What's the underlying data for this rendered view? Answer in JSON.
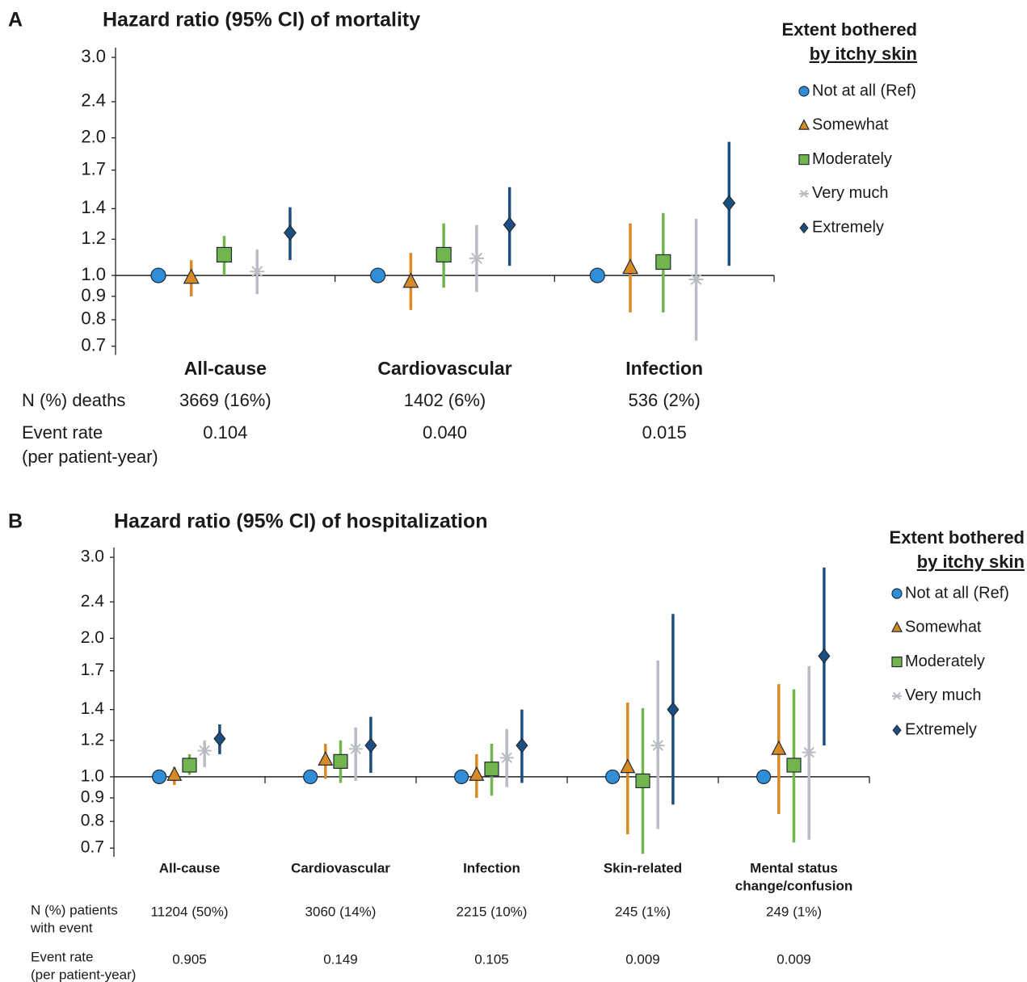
{
  "chart_data": [
    {
      "type": "forest",
      "panel": "A",
      "title": "Hazard ratio (95% CI) of mortality",
      "legend_title": [
        "Extent bothered",
        "by itchy skin"
      ],
      "categories": [
        "All-cause",
        "Cardiovascular",
        "Infection"
      ],
      "log_scale": true,
      "ylim": [
        0.67,
        3.1
      ],
      "yticks": [
        0.7,
        0.8,
        0.9,
        {
          "value": 1,
          "label": "1.0"
        },
        1.2,
        1.4,
        1.7,
        {
          "value": 2,
          "label": "2.0"
        },
        2.4,
        {
          "value": 3,
          "label": "3.0"
        }
      ],
      "series": [
        {
          "name": "Not at all (Ref)",
          "color": "#2e8fd8",
          "marker": "circle",
          "values": [
            1,
            1,
            1
          ],
          "lower": [
            null,
            null,
            null
          ],
          "upper": [
            null,
            null,
            null
          ]
        },
        {
          "name": "Somewhat",
          "color": "#d98a25",
          "marker": "triangle",
          "values": [
            0.99,
            0.97,
            1.04
          ],
          "lower": [
            0.9,
            0.84,
            0.83
          ],
          "upper": [
            1.08,
            1.12,
            1.3
          ]
        },
        {
          "name": "Moderately",
          "color": "#72b54c",
          "marker": "square",
          "values": [
            1.11,
            1.11,
            1.07
          ],
          "lower": [
            1.0,
            0.94,
            0.83
          ],
          "upper": [
            1.22,
            1.3,
            1.37
          ]
        },
        {
          "name": "Very much",
          "color": "#b9bcc4",
          "marker": "asterisk",
          "values": [
            1.02,
            1.09,
            0.98
          ],
          "lower": [
            0.91,
            0.92,
            0.72
          ],
          "upper": [
            1.14,
            1.29,
            1.33
          ]
        },
        {
          "name": "Extremely",
          "color": "#1c4f80",
          "marker": "diamond",
          "values": [
            1.24,
            1.29,
            1.44
          ],
          "lower": [
            1.08,
            1.05,
            1.05
          ],
          "upper": [
            1.41,
            1.56,
            1.96
          ]
        }
      ],
      "rows": [
        {
          "label": [
            "N (%) deaths"
          ],
          "cells": [
            "3669 (16%)",
            "1402 (6%)",
            "536 (2%)"
          ]
        },
        {
          "label": [
            "Event rate",
            "(per patient-year)"
          ],
          "cells": [
            "0.104",
            "0.040",
            "0.015"
          ]
        }
      ]
    },
    {
      "type": "forest",
      "panel": "B",
      "title": "Hazard ratio (95% CI) of hospitalization",
      "legend_title": [
        "Extent bothered",
        "by itchy skin"
      ],
      "categories": [
        [
          "All-cause"
        ],
        [
          "Cardiovascular"
        ],
        [
          "Infection"
        ],
        [
          "Skin-related"
        ],
        [
          "Mental status",
          "change/confusion"
        ]
      ],
      "log_scale": true,
      "ylim": [
        0.67,
        3.1
      ],
      "yticks": [
        0.7,
        0.8,
        0.9,
        {
          "value": 1,
          "label": "1.0"
        },
        1.2,
        1.4,
        1.7,
        {
          "value": 2,
          "label": "2.0"
        },
        2.4,
        {
          "value": 3,
          "label": "3.0"
        }
      ],
      "series": [
        {
          "name": "Not at all (Ref)",
          "color": "#2e8fd8",
          "marker": "circle",
          "values": [
            1,
            1,
            1,
            1,
            1
          ],
          "lower": [
            null,
            null,
            null,
            null,
            null
          ],
          "upper": [
            null,
            null,
            null,
            null,
            null
          ]
        },
        {
          "name": "Somewhat",
          "color": "#d98a25",
          "marker": "triangle",
          "values": [
            1.01,
            1.09,
            1.01,
            1.05,
            1.15
          ],
          "lower": [
            0.96,
            0.99,
            0.9,
            0.75,
            0.83
          ],
          "upper": [
            1.05,
            1.18,
            1.12,
            1.45,
            1.59
          ]
        },
        {
          "name": "Moderately",
          "color": "#72b54c",
          "marker": "square",
          "values": [
            1.06,
            1.08,
            1.04,
            0.98,
            1.06
          ],
          "lower": [
            1.01,
            0.97,
            0.91,
            0.68,
            0.72
          ],
          "upper": [
            1.12,
            1.2,
            1.18,
            1.41,
            1.55
          ]
        },
        {
          "name": "Very much",
          "color": "#b9bcc4",
          "marker": "asterisk",
          "values": [
            1.14,
            1.15,
            1.1,
            1.17,
            1.13
          ],
          "lower": [
            1.05,
            0.98,
            0.95,
            0.77,
            0.73
          ],
          "upper": [
            1.2,
            1.28,
            1.27,
            1.79,
            1.74
          ]
        },
        {
          "name": "Extremely",
          "color": "#1c4f80",
          "marker": "diamond",
          "values": [
            1.21,
            1.17,
            1.17,
            1.4,
            1.83
          ],
          "lower": [
            1.12,
            1.02,
            0.97,
            0.87,
            1.17
          ],
          "upper": [
            1.3,
            1.35,
            1.4,
            2.26,
            2.85
          ]
        }
      ],
      "rows": [
        {
          "label": [
            "N (%) patients",
            "with event"
          ],
          "cells": [
            "11204 (50%)",
            "3060 (14%)",
            "2215 (10%)",
            "245 (1%)",
            "249 (1%)"
          ]
        },
        {
          "label": [
            "Event rate",
            "(per patient-year)"
          ],
          "cells": [
            "0.905",
            "0.149",
            "0.105",
            "0.009",
            "0.009"
          ]
        }
      ]
    }
  ]
}
